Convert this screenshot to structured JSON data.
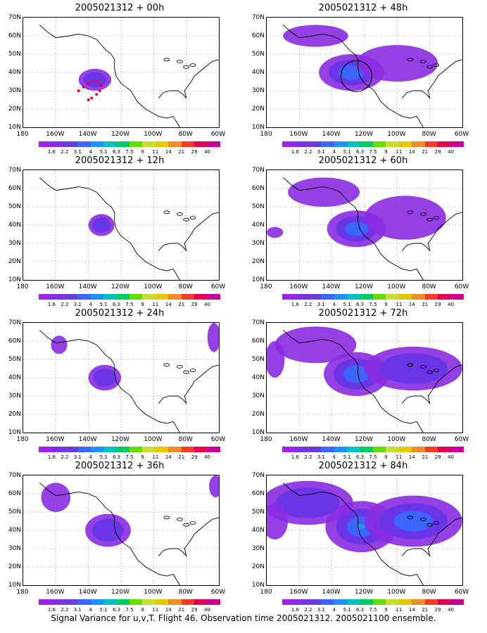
{
  "panels": [
    {
      "id": "p00",
      "title": "2005021312 + 00h",
      "col": 0,
      "row": 0,
      "blobs": [
        {
          "lon": -136,
          "lat": 36,
          "rx": 10,
          "ry": 6,
          "levels": 2
        }
      ],
      "dots": true
    },
    {
      "id": "p48",
      "title": "2005021312 + 48h",
      "col": 1,
      "row": 0,
      "blobs": [
        {
          "lon": -128,
          "lat": 40,
          "rx": 20,
          "ry": 10,
          "levels": 3
        },
        {
          "lon": -100,
          "lat": 45,
          "rx": 25,
          "ry": 10,
          "levels": 1
        },
        {
          "lon": -150,
          "lat": 60,
          "rx": 20,
          "ry": 6,
          "levels": 1
        }
      ],
      "circle": true
    },
    {
      "id": "p12",
      "title": "2005021312 + 12h",
      "col": 0,
      "row": 1,
      "blobs": [
        {
          "lon": -132,
          "lat": 40,
          "rx": 8,
          "ry": 6,
          "levels": 2
        }
      ]
    },
    {
      "id": "p60",
      "title": "2005021312 + 60h",
      "col": 1,
      "row": 1,
      "blobs": [
        {
          "lon": -125,
          "lat": 38,
          "rx": 18,
          "ry": 10,
          "levels": 3
        },
        {
          "lon": -145,
          "lat": 58,
          "rx": 22,
          "ry": 8,
          "levels": 1
        },
        {
          "lon": -95,
          "lat": 44,
          "rx": 25,
          "ry": 12,
          "levels": 1
        },
        {
          "lon": -175,
          "lat": 36,
          "rx": 5,
          "ry": 3,
          "levels": 1
        }
      ]
    },
    {
      "id": "p24",
      "title": "2005021312 + 24h",
      "col": 0,
      "row": 2,
      "blobs": [
        {
          "lon": -130,
          "lat": 40,
          "rx": 10,
          "ry": 7,
          "levels": 2
        },
        {
          "lon": -158,
          "lat": 58,
          "rx": 5,
          "ry": 5,
          "levels": 1
        },
        {
          "lon": -63,
          "lat": 62,
          "rx": 4,
          "ry": 8,
          "levels": 1
        }
      ]
    },
    {
      "id": "p72",
      "title": "2005021312 + 72h",
      "col": 1,
      "row": 2,
      "blobs": [
        {
          "lon": -125,
          "lat": 42,
          "rx": 20,
          "ry": 12,
          "levels": 3
        },
        {
          "lon": -150,
          "lat": 58,
          "rx": 25,
          "ry": 10,
          "levels": 1
        },
        {
          "lon": -90,
          "lat": 45,
          "rx": 30,
          "ry": 12,
          "levels": 2
        },
        {
          "lon": -175,
          "lat": 50,
          "rx": 6,
          "ry": 10,
          "levels": 1
        }
      ]
    },
    {
      "id": "p36",
      "title": "2005021312 + 36h",
      "col": 0,
      "row": 3,
      "blobs": [
        {
          "lon": -128,
          "lat": 40,
          "rx": 14,
          "ry": 9,
          "levels": 2
        },
        {
          "lon": -160,
          "lat": 58,
          "rx": 9,
          "ry": 8,
          "levels": 1
        },
        {
          "lon": -62,
          "lat": 64,
          "rx": 4,
          "ry": 6,
          "levels": 1
        }
      ]
    },
    {
      "id": "p84",
      "title": "2005021312 + 84h",
      "col": 1,
      "row": 3,
      "blobs": [
        {
          "lon": -122,
          "lat": 42,
          "rx": 22,
          "ry": 14,
          "levels": 4
        },
        {
          "lon": -155,
          "lat": 55,
          "rx": 28,
          "ry": 12,
          "levels": 2
        },
        {
          "lon": -90,
          "lat": 45,
          "rx": 30,
          "ry": 14,
          "levels": 3
        },
        {
          "lon": -175,
          "lat": 45,
          "rx": 8,
          "ry": 10,
          "levels": 1
        }
      ]
    }
  ],
  "axes": {
    "y_labels": [
      "70N",
      "60N",
      "50N",
      "40N",
      "30N",
      "20N",
      "10N"
    ],
    "x_labels": [
      "180",
      "160W",
      "140W",
      "120W",
      "100W",
      "80W",
      "60W"
    ]
  },
  "colorbar": {
    "labels": [
      "1.6",
      "2.2",
      "3.1",
      "4",
      "5.1",
      "6.3",
      "7.5",
      "9",
      "11",
      "14",
      "21",
      "29",
      "40"
    ],
    "colors": [
      "#a020f0",
      "#7f2fe8",
      "#6a3cd8",
      "#3c64ff",
      "#1e90ff",
      "#00c0c0",
      "#00cc66",
      "#66dd00",
      "#c8dc32",
      "#e6c800",
      "#f08c28",
      "#f03c28",
      "#e60050",
      "#c80096"
    ]
  },
  "caption": "Signal Variance for u,v,T. Flight 46. Observation time 2005021312. 2005021100 ensemble."
}
